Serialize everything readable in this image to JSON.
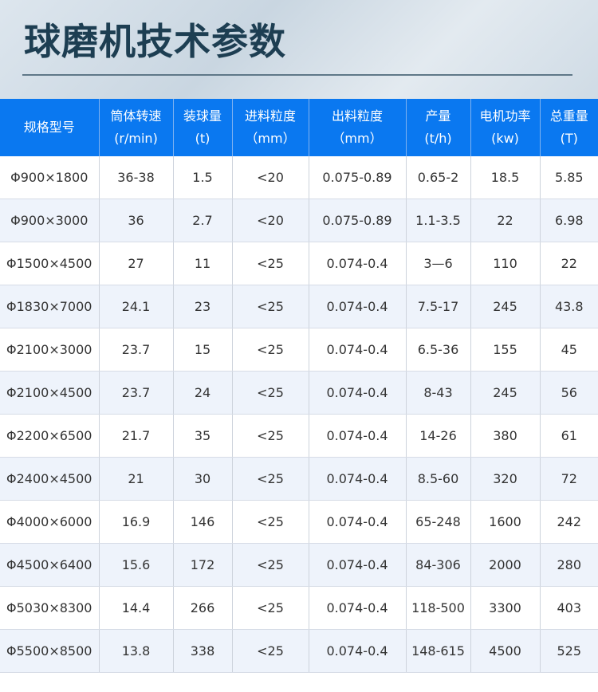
{
  "title": "球磨机技术参数",
  "headers": [
    [
      "规格型号",
      ""
    ],
    [
      "筒体转速",
      "(r/min)"
    ],
    [
      "装球量",
      "(t)"
    ],
    [
      "进料粒度",
      "（mm）"
    ],
    [
      "出料粒度",
      "（mm）"
    ],
    [
      "产量",
      "(t/h)"
    ],
    [
      "电机功率",
      "(kw)"
    ],
    [
      "总重量",
      "(T)"
    ]
  ],
  "rows": [
    [
      "Φ900×1800",
      "36-38",
      "1.5",
      "<20",
      "0.075-0.89",
      "0.65-2",
      "18.5",
      "5.85"
    ],
    [
      "Φ900×3000",
      "36",
      "2.7",
      "<20",
      "0.075-0.89",
      "1.1-3.5",
      "22",
      "6.98"
    ],
    [
      "Φ1500×4500",
      "27",
      "11",
      "<25",
      "0.074-0.4",
      "3—6",
      "110",
      "22"
    ],
    [
      "Φ1830×7000",
      "24.1",
      "23",
      "<25",
      "0.074-0.4",
      "7.5-17",
      "245",
      "43.8"
    ],
    [
      "Φ2100×3000",
      "23.7",
      "15",
      "<25",
      "0.074-0.4",
      "6.5-36",
      "155",
      "45"
    ],
    [
      "Φ2100×4500",
      "23.7",
      "24",
      "<25",
      "0.074-0.4",
      "8-43",
      "245",
      "56"
    ],
    [
      "Φ2200×6500",
      "21.7",
      "35",
      "<25",
      "0.074-0.4",
      "14-26",
      "380",
      "61"
    ],
    [
      "Φ2400×4500",
      "21",
      "30",
      "<25",
      "0.074-0.4",
      "8.5-60",
      "320",
      "72"
    ],
    [
      "Φ4000×6000",
      "16.9",
      "146",
      "<25",
      "0.074-0.4",
      "65-248",
      "1600",
      "242"
    ],
    [
      "Φ4500×6400",
      "15.6",
      "172",
      "<25",
      "0.074-0.4",
      "84-306",
      "2000",
      "280"
    ],
    [
      "Φ5030×8300",
      "14.4",
      "266",
      "<25",
      "0.074-0.4",
      "118-500",
      "3300",
      "403"
    ],
    [
      "Φ5500×8500",
      "13.8",
      "338",
      "<25",
      "0.074-0.4",
      "148-615",
      "4500",
      "525"
    ]
  ],
  "colors": {
    "header_bg": "#0a78f0",
    "title": "#1d3e52",
    "alt_row": "#eef3fb"
  }
}
